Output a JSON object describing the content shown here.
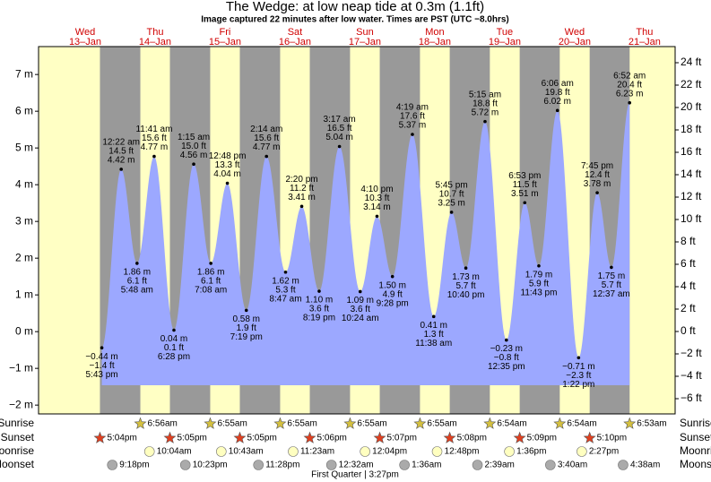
{
  "chart_data": {
    "type": "tide",
    "title": "The Wedge: at low  neap tide at 0.3m (1.1ft)",
    "subtitle": "Image captured 22 minutes after low water. Times are PST (UTC −8.0hrs)",
    "xlim": [
      "12–Jan 8:00 pm",
      "21–Jan 10:30 pm"
    ],
    "ylim": [
      -2.24,
      7.76
    ],
    "yticks": [
      {
        "value": -2,
        "label": "−2 m"
      },
      {
        "value": -1,
        "label": "−1 m"
      },
      {
        "value": 0,
        "label": "0 m"
      },
      {
        "value": 1,
        "label": "1 m"
      },
      {
        "value": 2,
        "label": "2 m"
      },
      {
        "value": 3,
        "label": "3 m"
      },
      {
        "value": 4,
        "label": "4 m"
      },
      {
        "value": 5,
        "label": "5 m"
      },
      {
        "value": 6,
        "label": "6 m"
      },
      {
        "value": 7,
        "label": "7 m"
      }
    ],
    "y2lim": [
      -7.36,
      25.44
    ],
    "y2ticks": [
      {
        "value": -6,
        "label": "−6 ft"
      },
      {
        "value": -4,
        "label": "−4 ft"
      },
      {
        "value": -2,
        "label": "−2 ft"
      },
      {
        "value": 0,
        "label": "0 ft"
      },
      {
        "value": 2,
        "label": "2 ft"
      },
      {
        "value": 4,
        "label": "4 ft"
      },
      {
        "value": 6,
        "label": "6 ft"
      },
      {
        "value": 8,
        "label": "8 ft"
      },
      {
        "value": 10,
        "label": "10 ft"
      },
      {
        "value": 12,
        "label": "12 ft"
      },
      {
        "value": 14,
        "label": "14 ft"
      },
      {
        "value": 16,
        "label": "16 ft"
      },
      {
        "value": 18,
        "label": "18 ft"
      },
      {
        "value": 20,
        "label": "20 ft"
      },
      {
        "value": 22,
        "label": "22 ft"
      },
      {
        "value": 24,
        "label": "24 ft"
      }
    ],
    "days": [
      {
        "weekday": "Wed",
        "date": "13–Jan"
      },
      {
        "weekday": "Thu",
        "date": "14–Jan"
      },
      {
        "weekday": "Fri",
        "date": "15–Jan"
      },
      {
        "weekday": "Sat",
        "date": "16–Jan"
      },
      {
        "weekday": "Sun",
        "date": "17–Jan"
      },
      {
        "weekday": "Mon",
        "date": "18–Jan"
      },
      {
        "weekday": "Tue",
        "date": "19–Jan"
      },
      {
        "weekday": "Wed",
        "date": "20–Jan"
      },
      {
        "weekday": "Thu",
        "date": "21–Jan"
      }
    ],
    "colors": {
      "day": "#ffffc4",
      "night": "#999999",
      "tide": "#9ca8ff"
    },
    "tides": [
      {
        "day": "13–Jan",
        "time": "5:43 pm",
        "ft": "−1.4 ft",
        "m": -0.44,
        "m_label": "−0.44 m"
      },
      {
        "day": "14–Jan",
        "time": "12:22 am",
        "ft": "14.5 ft",
        "m": 4.42,
        "m_label": "4.42 m"
      },
      {
        "day": "14–Jan",
        "time": "5:48 am",
        "ft": "6.1 ft",
        "m": 1.86,
        "m_label": "1.86 m"
      },
      {
        "day": "14–Jan",
        "time": "11:41 am",
        "ft": "15.6 ft",
        "m": 4.77,
        "m_label": "4.77 m"
      },
      {
        "day": "14–Jan",
        "time": "6:28 pm",
        "ft": "0.1 ft",
        "m": 0.04,
        "m_label": "0.04 m"
      },
      {
        "day": "15–Jan",
        "time": "1:15 am",
        "ft": "15.0 ft",
        "m": 4.56,
        "m_label": "4.56 m"
      },
      {
        "day": "15–Jan",
        "time": "7:08 am",
        "ft": "6.1 ft",
        "m": 1.86,
        "m_label": "1.86 m"
      },
      {
        "day": "15–Jan",
        "time": "12:48 pm",
        "ft": "13.3 ft",
        "m": 4.04,
        "m_label": "4.04 m"
      },
      {
        "day": "15–Jan",
        "time": "7:19 pm",
        "ft": "1.9 ft",
        "m": 0.58,
        "m_label": "0.58 m"
      },
      {
        "day": "16–Jan",
        "time": "2:14 am",
        "ft": "15.6 ft",
        "m": 4.77,
        "m_label": "4.77 m"
      },
      {
        "day": "16–Jan",
        "time": "8:47 am",
        "ft": "5.3 ft",
        "m": 1.62,
        "m_label": "1.62 m"
      },
      {
        "day": "16–Jan",
        "time": "2:20 pm",
        "ft": "11.2 ft",
        "m": 3.41,
        "m_label": "3.41 m"
      },
      {
        "day": "16–Jan",
        "time": "8:19 pm",
        "ft": "3.6 ft",
        "m": 1.1,
        "m_label": "1.10 m"
      },
      {
        "day": "17–Jan",
        "time": "3:17 am",
        "ft": "16.5 ft",
        "m": 5.04,
        "m_label": "5.04 m"
      },
      {
        "day": "17–Jan",
        "time": "10:24 am",
        "ft": "3.6 ft",
        "m": 1.09,
        "m_label": "1.09 m"
      },
      {
        "day": "17–Jan",
        "time": "4:10 pm",
        "ft": "10.3 ft",
        "m": 3.14,
        "m_label": "3.14 m"
      },
      {
        "day": "17–Jan",
        "time": "9:28 pm",
        "ft": "4.9 ft",
        "m": 1.5,
        "m_label": "1.50 m"
      },
      {
        "day": "18–Jan",
        "time": "4:19 am",
        "ft": "17.6 ft",
        "m": 5.37,
        "m_label": "5.37 m"
      },
      {
        "day": "18–Jan",
        "time": "11:38 am",
        "ft": "1.3 ft",
        "m": 0.41,
        "m_label": "0.41 m"
      },
      {
        "day": "18–Jan",
        "time": "5:45 pm",
        "ft": "10.7 ft",
        "m": 3.25,
        "m_label": "3.25 m"
      },
      {
        "day": "18–Jan",
        "time": "10:40 pm",
        "ft": "5.7 ft",
        "m": 1.73,
        "m_label": "1.73 m"
      },
      {
        "day": "19–Jan",
        "time": "5:15 am",
        "ft": "18.8 ft",
        "m": 5.72,
        "m_label": "5.72 m"
      },
      {
        "day": "19–Jan",
        "time": "12:35 pm",
        "ft": "−0.8 ft",
        "m": -0.23,
        "m_label": "−0.23 m"
      },
      {
        "day": "19–Jan",
        "time": "6:53 pm",
        "ft": "11.5 ft",
        "m": 3.51,
        "m_label": "3.51 m"
      },
      {
        "day": "19–Jan",
        "time": "11:43 pm",
        "ft": "5.9 ft",
        "m": 1.79,
        "m_label": "1.79 m"
      },
      {
        "day": "20–Jan",
        "time": "6:06 am",
        "ft": "19.8 ft",
        "m": 6.02,
        "m_label": "6.02 m"
      },
      {
        "day": "20–Jan",
        "time": "1:22 pm",
        "ft": "−2.3 ft",
        "m": -0.71,
        "m_label": "−0.71 m"
      },
      {
        "day": "20–Jan",
        "time": "7:45 pm",
        "ft": "12.4 ft",
        "m": 3.78,
        "m_label": "3.78 m"
      },
      {
        "day": "21–Jan",
        "time": "12:37 am",
        "ft": "5.7 ft",
        "m": 1.75,
        "m_label": "1.75 m"
      },
      {
        "day": "21–Jan",
        "time": "6:52 am",
        "ft": "20.4 ft",
        "m": 6.23,
        "m_label": "6.23 m"
      }
    ],
    "rows": [
      {
        "name": "Sunrise",
        "times": [
          null,
          "6:56am",
          "6:55am",
          "6:55am",
          "6:55am",
          "6:55am",
          "6:54am",
          "6:54am",
          "6:53am"
        ]
      },
      {
        "name": "Sunset",
        "times": [
          "5:04pm",
          "5:05pm",
          "5:05pm",
          "5:06pm",
          "5:07pm",
          "5:08pm",
          "5:09pm",
          "5:10pm",
          null
        ]
      },
      {
        "name": "Moonrise",
        "times": [
          null,
          "10:04am",
          "10:43am",
          "11:23am",
          "12:04pm",
          "12:48pm",
          "1:36pm",
          "2:27pm",
          null
        ]
      },
      {
        "name": "Moonset",
        "times": [
          "9:18pm",
          "10:23pm",
          "11:28pm",
          null,
          "12:32am",
          "1:36am",
          "2:39am",
          "3:40am",
          "4:38am"
        ]
      }
    ],
    "moon_phase": "First Quarter | 3:27pm"
  }
}
